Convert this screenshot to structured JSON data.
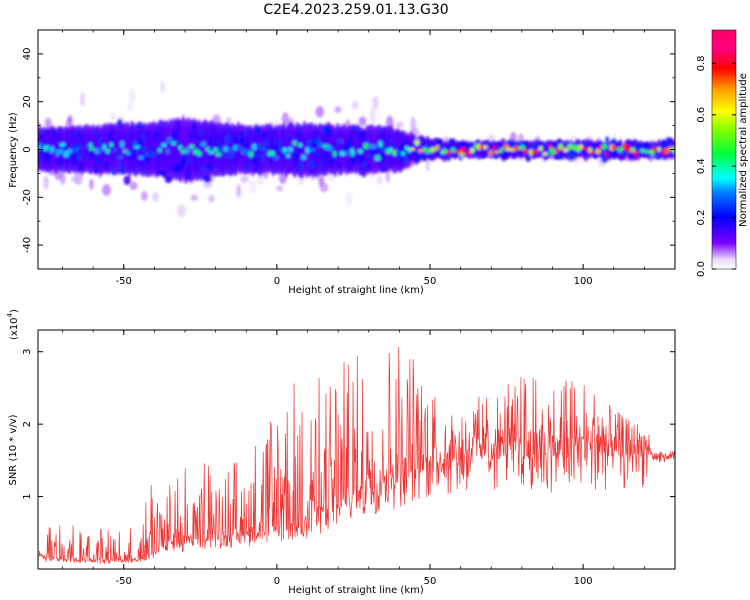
{
  "figure_title": "C2E4.2023.259.01.13.G30",
  "chart_data": [
    {
      "type": "heatmap",
      "xlabel": "Height of straight line (km)",
      "ylabel": "Frequency (Hz)",
      "xlim": [
        -78,
        130
      ],
      "ylim": [
        -50,
        50
      ],
      "xticks": [
        -50,
        0,
        50,
        100
      ],
      "xtick_labels": [
        "-50",
        "0",
        "50",
        "100"
      ],
      "yticks": [
        -40,
        -20,
        0,
        20,
        40
      ],
      "ytick_labels": [
        "-40",
        "-20",
        "0",
        "20",
        "40"
      ],
      "colorbar": {
        "label": "Normalized spectral amplitude",
        "range": [
          0,
          0.93
        ],
        "ticks": [
          0.0,
          0.2,
          0.4,
          0.6,
          0.8
        ],
        "tick_labels": [
          "0.0",
          "0.2",
          "0.4",
          "0.6",
          "0.8"
        ]
      },
      "band_profile": {
        "heights_km": [
          -78,
          -60,
          -40,
          -30,
          -20,
          -10,
          0,
          10,
          20,
          30,
          40,
          45,
          50,
          60,
          70,
          80,
          90,
          100,
          110,
          120,
          130
        ],
        "half_width_hz": [
          8,
          9,
          10,
          12,
          10,
          9,
          9,
          10,
          9,
          9,
          8,
          5,
          4,
          3,
          3,
          3,
          3,
          3,
          3,
          3,
          3
        ],
        "outer_half_width_hz": [
          18,
          20,
          24,
          26,
          22,
          20,
          22,
          24,
          22,
          20,
          16,
          10,
          7,
          5,
          5,
          5,
          5,
          5,
          5,
          5,
          4
        ],
        "peak_amplitude": [
          0.4,
          0.42,
          0.45,
          0.48,
          0.45,
          0.45,
          0.45,
          0.45,
          0.45,
          0.45,
          0.5,
          0.7,
          0.85,
          0.9,
          0.9,
          0.88,
          0.88,
          0.88,
          0.88,
          0.9,
          0.9
        ]
      }
    },
    {
      "type": "line",
      "xlabel": "Height of straight line (km)",
      "ylabel": "SNR (10 * v/v)",
      "scale_label": "(x10",
      "scale_exponent": "4",
      "xlim": [
        -78,
        130
      ],
      "ylim": [
        0,
        3.3
      ],
      "xticks": [
        -50,
        0,
        50,
        100
      ],
      "xtick_labels": [
        "-50",
        "0",
        "50",
        "100"
      ],
      "yticks": [
        1,
        2,
        3
      ],
      "ytick_labels": [
        "1",
        "2",
        "3"
      ],
      "color": "#ee3333",
      "envelope": {
        "x": [
          -78,
          -60,
          -45,
          -40,
          -38,
          -30,
          -20,
          -10,
          0,
          10,
          20,
          30,
          40,
          45,
          50,
          60,
          70,
          80,
          90,
          100,
          110,
          120,
          125,
          130
        ],
        "base": [
          0.15,
          0.1,
          0.12,
          0.2,
          0.3,
          0.35,
          0.4,
          0.45,
          0.5,
          0.6,
          0.8,
          1.0,
          1.2,
          1.3,
          1.4,
          1.5,
          1.55,
          1.55,
          1.5,
          1.55,
          1.55,
          1.55,
          1.6,
          1.55
        ],
        "peak": [
          0.7,
          0.55,
          0.6,
          1.6,
          1.0,
          1.5,
          1.5,
          1.6,
          2.4,
          2.6,
          2.9,
          2.9,
          3.3,
          3.0,
          2.5,
          2.3,
          2.4,
          2.7,
          2.6,
          2.7,
          2.2,
          2.0,
          1.8,
          1.6
        ]
      },
      "samples": 1200
    }
  ]
}
